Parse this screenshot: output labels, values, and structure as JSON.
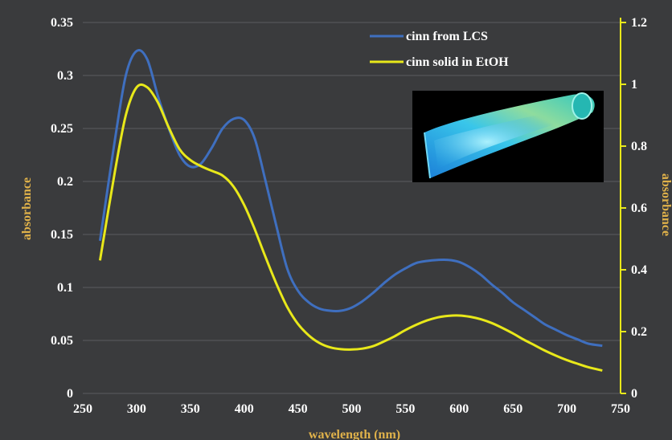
{
  "chart_data": {
    "type": "line",
    "title": "",
    "xlabel": "wavelength (nm)",
    "ylabel": "absorbance",
    "y2label": "absorbance",
    "xlim": [
      250,
      750
    ],
    "ylim": [
      0,
      0.35
    ],
    "y2lim": [
      0,
      1.2
    ],
    "xticks": [
      "250",
      "300",
      "350",
      "400",
      "450",
      "500",
      "550",
      "600",
      "650",
      "700",
      "750"
    ],
    "yticks": [
      "0",
      "0.05",
      "0.1",
      "0.15",
      "0.2",
      "0.25",
      "0.3",
      "0.35"
    ],
    "y2ticks": [
      "0",
      "0.2",
      "0.4",
      "0.6",
      "0.8",
      "1",
      "1.2"
    ],
    "grid": "horizontal",
    "legend_position": "top-right",
    "series": [
      {
        "name": "cinn from LCS",
        "axis": "left",
        "color": "#3f6fbf",
        "points": [
          [
            266,
            0.144
          ],
          [
            280,
            0.24
          ],
          [
            290,
            0.3
          ],
          [
            300,
            0.323
          ],
          [
            310,
            0.315
          ],
          [
            320,
            0.28
          ],
          [
            330,
            0.25
          ],
          [
            340,
            0.225
          ],
          [
            350,
            0.214
          ],
          [
            360,
            0.217
          ],
          [
            370,
            0.232
          ],
          [
            380,
            0.25
          ],
          [
            390,
            0.259
          ],
          [
            400,
            0.258
          ],
          [
            410,
            0.24
          ],
          [
            420,
            0.2
          ],
          [
            430,
            0.158
          ],
          [
            440,
            0.118
          ],
          [
            450,
            0.097
          ],
          [
            460,
            0.086
          ],
          [
            470,
            0.08
          ],
          [
            480,
            0.078
          ],
          [
            490,
            0.078
          ],
          [
            500,
            0.081
          ],
          [
            510,
            0.087
          ],
          [
            520,
            0.095
          ],
          [
            530,
            0.104
          ],
          [
            540,
            0.112
          ],
          [
            550,
            0.118
          ],
          [
            560,
            0.123
          ],
          [
            570,
            0.125
          ],
          [
            580,
            0.126
          ],
          [
            590,
            0.126
          ],
          [
            600,
            0.124
          ],
          [
            610,
            0.119
          ],
          [
            620,
            0.112
          ],
          [
            630,
            0.103
          ],
          [
            640,
            0.095
          ],
          [
            650,
            0.086
          ],
          [
            660,
            0.079
          ],
          [
            670,
            0.072
          ],
          [
            680,
            0.065
          ],
          [
            690,
            0.06
          ],
          [
            700,
            0.055
          ],
          [
            710,
            0.051
          ],
          [
            720,
            0.047
          ],
          [
            733,
            0.045
          ]
        ]
      },
      {
        "name": "cinn solid in EtOH",
        "axis": "right",
        "color": "#e8e81a",
        "points": [
          [
            266,
            0.43
          ],
          [
            280,
            0.72
          ],
          [
            290,
            0.9
          ],
          [
            300,
            0.99
          ],
          [
            310,
            0.99
          ],
          [
            320,
            0.94
          ],
          [
            330,
            0.86
          ],
          [
            340,
            0.79
          ],
          [
            350,
            0.755
          ],
          [
            360,
            0.735
          ],
          [
            370,
            0.72
          ],
          [
            380,
            0.705
          ],
          [
            390,
            0.67
          ],
          [
            400,
            0.61
          ],
          [
            410,
            0.53
          ],
          [
            420,
            0.44
          ],
          [
            430,
            0.355
          ],
          [
            440,
            0.28
          ],
          [
            450,
            0.225
          ],
          [
            460,
            0.188
          ],
          [
            470,
            0.163
          ],
          [
            480,
            0.149
          ],
          [
            490,
            0.143
          ],
          [
            500,
            0.142
          ],
          [
            510,
            0.145
          ],
          [
            520,
            0.153
          ],
          [
            530,
            0.168
          ],
          [
            540,
            0.185
          ],
          [
            550,
            0.205
          ],
          [
            560,
            0.222
          ],
          [
            570,
            0.236
          ],
          [
            580,
            0.246
          ],
          [
            590,
            0.251
          ],
          [
            600,
            0.252
          ],
          [
            610,
            0.248
          ],
          [
            620,
            0.24
          ],
          [
            630,
            0.228
          ],
          [
            640,
            0.212
          ],
          [
            650,
            0.194
          ],
          [
            660,
            0.174
          ],
          [
            670,
            0.156
          ],
          [
            680,
            0.138
          ],
          [
            690,
            0.122
          ],
          [
            700,
            0.108
          ],
          [
            710,
            0.096
          ],
          [
            720,
            0.085
          ],
          [
            733,
            0.074
          ]
        ]
      }
    ]
  },
  "colors": {
    "background": "#3a3b3d",
    "gridline": "#5a5b5e",
    "tick_text": "#ffffff",
    "axis_label": "#e0b24a",
    "right_axis": "#e8e81a"
  },
  "inset_image": {
    "description_icon": "glowing-tube-photo"
  }
}
